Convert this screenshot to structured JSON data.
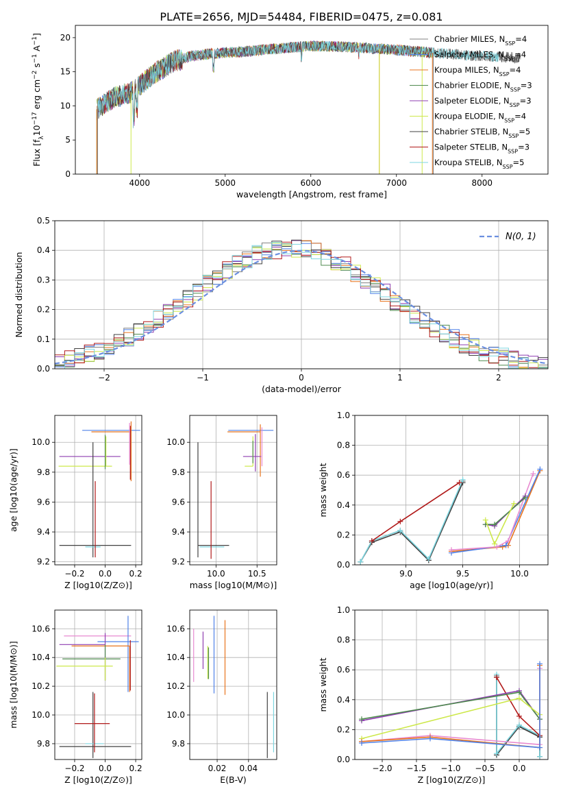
{
  "title": "PLATE=2656, MJD=54484, FIBERID=0475, z=0.081",
  "colors": {
    "chabrier_miles": "#808080",
    "salpeter_miles": "#4f81e8",
    "kroupa_miles": "#e8731c",
    "chabrier_elodie": "#4e8a4e",
    "salpeter_elodie": "#8e3cb0",
    "kroupa_elodie": "#cde84a",
    "chabrier_stelib": "#404040",
    "salpeter_stelib": "#b01818",
    "kroupa_stelib": "#7dd6e0",
    "gaussian": "#6b8fe0",
    "pink": "#e88ad0"
  },
  "chart_data": [
    {
      "id": "spectrum",
      "type": "line",
      "xlabel": "wavelength [Angstrom, rest frame]",
      "ylabel": "Flux [f_λ10^-17 erg cm^-2 s^-1 A^-1]",
      "xlim": [
        3250,
        8770
      ],
      "ylim": [
        0,
        21.8
      ],
      "xticks": [
        4000,
        5000,
        6000,
        7000,
        8000
      ],
      "yticks": [
        0,
        5,
        10,
        15,
        20
      ],
      "grid": false,
      "legend_position": "right",
      "legend": [
        {
          "name": "Chabrier MILES, N",
          "sub": "SSP",
          "suffix": "=4",
          "color": "#808080"
        },
        {
          "name": "Salpeter MILES, N",
          "sub": "SSP",
          "suffix": "=4",
          "color": "#4f81e8"
        },
        {
          "name": "Kroupa MILES, N",
          "sub": "SSP",
          "suffix": "=4",
          "color": "#e8731c"
        },
        {
          "name": "Chabrier ELODIE, N",
          "sub": "SSP",
          "suffix": "=3",
          "color": "#4e8a4e"
        },
        {
          "name": "Salpeter ELODIE, N",
          "sub": "SSP",
          "suffix": "=3",
          "color": "#8e3cb0"
        },
        {
          "name": "Kroupa ELODIE, N",
          "sub": "SSP",
          "suffix": "=4",
          "color": "#cde84a"
        },
        {
          "name": "Chabrier STELIB, N",
          "sub": "SSP",
          "suffix": "=5",
          "color": "#404040"
        },
        {
          "name": "Salpeter STELIB, N",
          "sub": "SSP",
          "suffix": "=3",
          "color": "#b01818"
        },
        {
          "name": "Kroupa STELIB, N",
          "sub": "SSP",
          "suffix": "=5",
          "color": "#7dd6e0"
        }
      ],
      "continuum": [
        [
          3500,
          9.5
        ],
        [
          3700,
          11.2
        ],
        [
          3900,
          12.0
        ],
        [
          4000,
          13.0
        ],
        [
          4200,
          15.0
        ],
        [
          4400,
          16.5
        ],
        [
          4600,
          17.3
        ],
        [
          4800,
          17.6
        ],
        [
          5000,
          17.8
        ],
        [
          5200,
          17.9
        ],
        [
          5500,
          18.3
        ],
        [
          6000,
          18.8
        ],
        [
          6500,
          18.6
        ],
        [
          7000,
          18.2
        ],
        [
          7400,
          17.8
        ],
        [
          8000,
          17.3
        ],
        [
          8500,
          17.0
        ]
      ]
    },
    {
      "id": "residuals",
      "type": "histogram",
      "xlabel": "(data-model)/error",
      "ylabel": "Normed distribution",
      "xlim": [
        -2.5,
        2.5
      ],
      "ylim": [
        0,
        0.5
      ],
      "xticks": [
        -2,
        -1,
        0,
        1,
        2
      ],
      "yticks": [
        0.0,
        0.1,
        0.2,
        0.3,
        0.4,
        0.5
      ],
      "grid": true,
      "legend_position": "top-right",
      "legend_label": "N(0, 1)",
      "gaussian": {
        "mean": 0,
        "sigma": 1
      }
    },
    {
      "id": "age_vs_z",
      "type": "errorbar",
      "xlabel": "Z [log10(Z/Z⊙)]",
      "ylabel": "age [log10(age/yr)]",
      "xlim": [
        -0.33,
        0.24
      ],
      "ylim": [
        9.18,
        10.18
      ],
      "xticks": [
        -0.2,
        0.0,
        0.2
      ],
      "yticks": [
        9.2,
        9.4,
        9.6,
        9.8,
        10.0
      ],
      "grid": true,
      "points": [
        {
          "c": "#4f81e8",
          "x": 0.16,
          "xerr": [
            0.31,
            0.07
          ],
          "y": 10.08,
          "yerr": [
            0.0,
            0.0
          ]
        },
        {
          "c": "#e8731c",
          "x": 0.17,
          "xerr": [
            0.26,
            0.0
          ],
          "y": 10.07,
          "yerr": [
            0.33,
            0.07
          ]
        },
        {
          "c": "#b01818",
          "x": 0.165,
          "xerr": [
            0.0,
            0.0
          ],
          "y": 10.05,
          "yerr": [
            0.3,
            0.06
          ]
        },
        {
          "c": "#e88ad0",
          "x": 0.16,
          "xerr": [
            0.0,
            0.0
          ],
          "y": 10.0,
          "yerr": [
            0.15,
            0.13
          ]
        },
        {
          "c": "#8e3cb0",
          "x": 0.0,
          "xerr": [
            0.3,
            0.1
          ],
          "y": 9.905,
          "yerr": [
            0.0,
            0.0
          ]
        },
        {
          "c": "#cde84a",
          "x": 0.005,
          "xerr": [
            0.31,
            0.04
          ],
          "y": 9.84,
          "yerr": [
            0.0,
            0.2
          ]
        },
        {
          "c": "#4e8a4e",
          "x": 0.0,
          "xerr": [
            0.0,
            0.0
          ],
          "y": 9.96,
          "yerr": [
            0.14,
            0.09
          ]
        },
        {
          "c": "#404040",
          "x": -0.08,
          "xerr": [
            0.22,
            0.25
          ],
          "y": 9.31,
          "yerr": [
            0.08,
            0.69
          ]
        },
        {
          "c": "#7dd6e0",
          "x": -0.08,
          "xerr": [
            0.05,
            0.05
          ],
          "y": 9.3,
          "yerr": [
            0.0,
            0.0
          ]
        },
        {
          "c": "#b01818",
          "x": -0.065,
          "xerr": [
            0.0,
            0.0
          ],
          "y": 9.45,
          "yerr": [
            0.22,
            0.29
          ]
        }
      ]
    },
    {
      "id": "age_vs_mass",
      "type": "errorbar",
      "xlabel": "mass [log10(M/M⊙)]",
      "ylabel": "",
      "xlim": [
        9.68,
        10.74
      ],
      "ylim": [
        9.18,
        10.18
      ],
      "xticks": [
        10.0,
        10.5
      ],
      "yticks": [
        9.2,
        9.4,
        9.6,
        9.8,
        10.0
      ],
      "grid": true,
      "points": [
        {
          "c": "#4f81e8",
          "x": 10.5,
          "xerr": [
            0.35,
            0.2
          ],
          "y": 10.08,
          "yerr": [
            0.0,
            0.0
          ]
        },
        {
          "c": "#e8731c",
          "x": 10.54,
          "xerr": [
            0.4,
            0.0
          ],
          "y": 10.07,
          "yerr": [
            0.3,
            0.05
          ]
        },
        {
          "c": "#e88ad0",
          "x": 10.56,
          "xerr": [
            0.0,
            0.0
          ],
          "y": 10.0,
          "yerr": [
            0.16,
            0.1
          ]
        },
        {
          "c": "#8e3cb0",
          "x": 10.48,
          "xerr": [
            0.15,
            0.07
          ],
          "y": 9.905,
          "yerr": [
            0.1,
            0.15
          ]
        },
        {
          "c": "#cde84a",
          "x": 10.45,
          "xerr": [
            0.1,
            0.0
          ],
          "y": 9.84,
          "yerr": [
            0.0,
            0.2
          ]
        },
        {
          "c": "#4e8a4e",
          "x": 10.45,
          "xerr": [
            0.0,
            0.0
          ],
          "y": 9.96,
          "yerr": [
            0.1,
            0.05
          ]
        },
        {
          "c": "#404040",
          "x": 9.78,
          "xerr": [
            0.0,
            0.38
          ],
          "y": 9.31,
          "yerr": [
            0.08,
            0.69
          ]
        },
        {
          "c": "#7dd6e0",
          "x": 9.8,
          "xerr": [
            0.0,
            0.3
          ],
          "y": 9.3,
          "yerr": [
            0.0,
            0.0
          ]
        },
        {
          "c": "#b01818",
          "x": 9.94,
          "xerr": [
            0.0,
            0.0
          ],
          "y": 9.48,
          "yerr": [
            0.26,
            0.26
          ]
        }
      ]
    },
    {
      "id": "massweight_vs_age",
      "type": "line",
      "xlabel": "age [log10(age/yr)]",
      "ylabel": "mass weight",
      "xlim": [
        8.55,
        10.25
      ],
      "ylim": [
        0.0,
        1.0
      ],
      "xticks": [
        9.0,
        9.5,
        10.0
      ],
      "yticks": [
        0.0,
        0.2,
        0.4,
        0.6,
        0.8,
        1.0
      ],
      "grid": true,
      "series": [
        {
          "c": "#808080",
          "x": [
            8.6,
            8.7,
            8.95,
            9.2,
            9.5
          ],
          "y": [
            0.02,
            0.16,
            0.23,
            0.03,
            0.56
          ]
        },
        {
          "c": "#404040",
          "x": [
            8.6,
            8.7,
            8.95,
            9.2,
            9.5
          ],
          "y": [
            0.02,
            0.15,
            0.22,
            0.03,
            0.55
          ]
        },
        {
          "c": "#7dd6e0",
          "x": [
            8.6,
            8.7,
            8.95,
            9.2,
            9.5
          ],
          "y": [
            0.02,
            0.16,
            0.23,
            0.04,
            0.57
          ]
        },
        {
          "c": "#b01818",
          "x": [
            8.7,
            8.95,
            9.47
          ],
          "y": [
            0.16,
            0.29,
            0.55
          ]
        },
        {
          "c": "#e8731c",
          "x": [
            9.4,
            9.85,
            9.9,
            10.18
          ],
          "y": [
            0.09,
            0.12,
            0.13,
            0.63
          ]
        },
        {
          "c": "#4f81e8",
          "x": [
            9.4,
            9.88,
            10.18
          ],
          "y": [
            0.08,
            0.13,
            0.64
          ]
        },
        {
          "c": "#e88ad0",
          "x": [
            9.4,
            9.8,
            9.9,
            10.12
          ],
          "y": [
            0.1,
            0.12,
            0.16,
            0.61
          ]
        },
        {
          "c": "#8e3cb0",
          "x": [
            9.7,
            9.78,
            10.05
          ],
          "y": [
            0.27,
            0.26,
            0.46
          ]
        },
        {
          "c": "#4e8a4e",
          "x": [
            9.7,
            9.78,
            10.05
          ],
          "y": [
            0.27,
            0.27,
            0.45
          ]
        },
        {
          "c": "#cde84a",
          "x": [
            9.7,
            9.78,
            9.95
          ],
          "y": [
            0.3,
            0.14,
            0.41
          ]
        }
      ]
    },
    {
      "id": "mass_vs_z",
      "type": "errorbar",
      "xlabel": "Z [log10(Z/Z⊙)]",
      "ylabel": "mass [log10(M/M⊙)]",
      "xlim": [
        -0.33,
        0.24
      ],
      "ylim": [
        9.69,
        10.73
      ],
      "xticks": [
        -0.2,
        0.0,
        0.2
      ],
      "yticks": [
        9.8,
        10.0,
        10.2,
        10.4,
        10.6
      ],
      "grid": true,
      "points": [
        {
          "c": "#e88ad0",
          "x": 0.0,
          "xerr": [
            0.27,
            0.17
          ],
          "y": 10.55,
          "yerr": [
            0.0,
            0.0
          ]
        },
        {
          "c": "#4f81e8",
          "x": 0.15,
          "xerr": [
            0.2,
            0.07
          ],
          "y": 10.51,
          "yerr": [
            0.35,
            0.18
          ]
        },
        {
          "c": "#8e3cb0",
          "x": 0.0,
          "xerr": [
            0.3,
            0.0
          ],
          "y": 10.49,
          "yerr": [
            0.25,
            0.08
          ]
        },
        {
          "c": "#e8731c",
          "x": 0.16,
          "xerr": [
            0.38,
            0.0
          ],
          "y": 10.48,
          "yerr": [
            0.32,
            0.0
          ]
        },
        {
          "c": "#b01818",
          "x": 0.165,
          "xerr": [
            0.0,
            0.0
          ],
          "y": 10.47,
          "yerr": [
            0.3,
            0.05
          ]
        },
        {
          "c": "#4e8a4e",
          "x": 0.0,
          "xerr": [
            0.28,
            0.1
          ],
          "y": 10.39,
          "yerr": [
            0.15,
            0.1
          ]
        },
        {
          "c": "#cde84a",
          "x": 0.0,
          "xerr": [
            0.32,
            0.05
          ],
          "y": 10.34,
          "yerr": [
            0.1,
            0.06
          ]
        },
        {
          "c": "#404040",
          "x": -0.08,
          "xerr": [
            0.22,
            0.25
          ],
          "y": 9.78,
          "yerr": [
            0.08,
            0.38
          ]
        },
        {
          "c": "#7dd6e0",
          "x": -0.07,
          "xerr": [
            0.06,
            0.06
          ],
          "y": 9.8,
          "yerr": [
            0.0,
            0.0
          ]
        },
        {
          "c": "#b01818",
          "x": -0.07,
          "xerr": [
            0.13,
            0.1
          ],
          "y": 9.94,
          "yerr": [
            0.2,
            0.21
          ]
        }
      ]
    },
    {
      "id": "mass_vs_ebv",
      "type": "errorbar",
      "xlabel": "E(B-V)",
      "ylabel": "",
      "xlim": [
        0.0025,
        0.058
      ],
      "ylim": [
        9.69,
        10.73
      ],
      "xticks": [
        0.02,
        0.04
      ],
      "yticks": [
        9.8,
        10.0,
        10.2,
        10.4,
        10.6
      ],
      "grid": true,
      "points": [
        {
          "c": "#e88ad0",
          "x": 0.005,
          "xerr": [
            0.0,
            0.0
          ],
          "y": 10.41,
          "yerr": [
            0.18,
            0.19
          ]
        },
        {
          "c": "#8e3cb0",
          "x": 0.011,
          "xerr": [
            0.0,
            0.0
          ],
          "y": 10.45,
          "yerr": [
            0.13,
            0.13
          ]
        },
        {
          "c": "#cde84a",
          "x": 0.014,
          "xerr": [
            0.0,
            0.0
          ],
          "y": 10.36,
          "yerr": [
            0.11,
            0.12
          ]
        },
        {
          "c": "#4e8a4e",
          "x": 0.0145,
          "xerr": [
            0.0,
            0.0
          ],
          "y": 10.37,
          "yerr": [
            0.12,
            0.1
          ]
        },
        {
          "c": "#4f81e8",
          "x": 0.018,
          "xerr": [
            0.0,
            0.0
          ],
          "y": 10.42,
          "yerr": [
            0.27,
            0.27
          ]
        },
        {
          "c": "#e8731c",
          "x": 0.025,
          "xerr": [
            0.0,
            0.0
          ],
          "y": 10.4,
          "yerr": [
            0.26,
            0.26
          ]
        },
        {
          "c": "#404040",
          "x": 0.052,
          "xerr": [
            0.0,
            0.0
          ],
          "y": 9.93,
          "yerr": [
            0.23,
            0.23
          ]
        },
        {
          "c": "#7dd6e0",
          "x": 0.056,
          "xerr": [
            0.0,
            0.0
          ],
          "y": 9.95,
          "yerr": [
            0.21,
            0.21
          ]
        }
      ]
    },
    {
      "id": "massweight_vs_z",
      "type": "line",
      "xlabel": "Z [log10(Z/Z⊙)]",
      "ylabel": "mass weight",
      "xlim": [
        -2.4,
        0.42
      ],
      "ylim": [
        0.0,
        1.0
      ],
      "xticks": [
        -2.0,
        -1.5,
        -1.0,
        -0.5,
        0.0
      ],
      "yticks": [
        0.0,
        0.2,
        0.4,
        0.6,
        0.8,
        1.0
      ],
      "grid": true,
      "series": [
        {
          "c": "#808080",
          "x": [
            -0.33,
            -0.33,
            0.0,
            0.3,
            0.3
          ],
          "y": [
            0.56,
            0.03,
            0.23,
            0.15,
            0.02
          ]
        },
        {
          "c": "#404040",
          "x": [
            -0.33,
            -0.33,
            0.0,
            0.3,
            0.3
          ],
          "y": [
            0.55,
            0.03,
            0.22,
            0.15,
            0.02
          ]
        },
        {
          "c": "#7dd6e0",
          "x": [
            -0.33,
            -0.33,
            0.0,
            0.3,
            0.3
          ],
          "y": [
            0.57,
            0.04,
            0.23,
            0.16,
            0.02
          ]
        },
        {
          "c": "#b01818",
          "x": [
            -0.33,
            0.0,
            0.3
          ],
          "y": [
            0.55,
            0.29,
            0.16
          ]
        },
        {
          "c": "#8e3cb0",
          "x": [
            -2.3,
            0.0,
            0.3
          ],
          "y": [
            0.26,
            0.46,
            0.27
          ]
        },
        {
          "c": "#4e8a4e",
          "x": [
            -2.3,
            0.0,
            0.3
          ],
          "y": [
            0.27,
            0.45,
            0.27
          ]
        },
        {
          "c": "#cde84a",
          "x": [
            -2.3,
            0.0,
            0.3
          ],
          "y": [
            0.14,
            0.41,
            0.3
          ]
        },
        {
          "c": "#e88ad0",
          "x": [
            -2.3,
            -1.3,
            0.3,
            0.3
          ],
          "y": [
            0.12,
            0.16,
            0.1,
            0.61
          ]
        },
        {
          "c": "#e8731c",
          "x": [
            -2.3,
            -1.3,
            0.3,
            0.3
          ],
          "y": [
            0.12,
            0.15,
            0.08,
            0.63
          ]
        },
        {
          "c": "#4f81e8",
          "x": [
            -2.3,
            -1.3,
            0.3,
            0.3
          ],
          "y": [
            0.11,
            0.14,
            0.08,
            0.64
          ]
        }
      ]
    }
  ]
}
